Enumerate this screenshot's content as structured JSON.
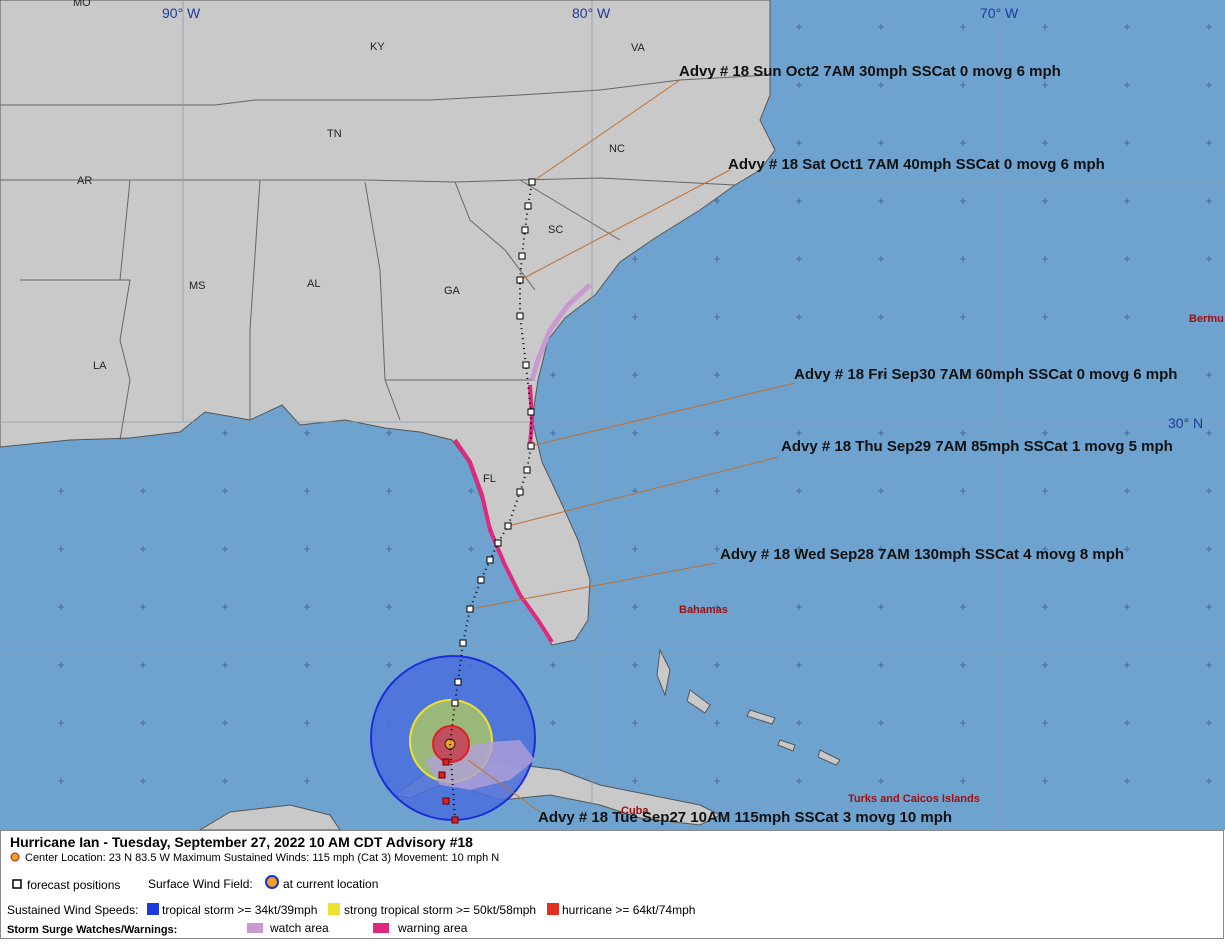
{
  "map": {
    "grid_labels": [
      "90° W",
      "80° W",
      "70° W",
      "30° N"
    ],
    "state_labels": [
      "MO",
      "KY",
      "VA",
      "TN",
      "NC",
      "AR",
      "SC",
      "MS",
      "AL",
      "GA",
      "LA",
      "FL"
    ],
    "place_labels": [
      "Bermu",
      "Bahamas",
      "Cuba",
      "Turks and Caicos Islands"
    ],
    "forecast_labels": [
      "Advy # 18 Sun Oct2 7AM  30mph SSCat 0 movg 6 mph",
      "Advy # 18 Sat Oct1 7AM  40mph SSCat 0 movg 6 mph",
      "Advy # 18 Fri Sep30 7AM  60mph SSCat 0 movg 6 mph",
      "Advy # 18 Thu Sep29 7AM  85mph SSCat 1 movg 5 mph",
      "Advy # 18 Wed Sep28 7AM  130mph SSCat 4 movg 8 mph",
      "Advy # 18 Tue Sep27 10AM  115mph SSCat 3 movg 10 mph"
    ]
  },
  "legend": {
    "title": "Hurricane Ian  -  Tuesday, September 27, 2022  10 AM CDT   Advisory #18",
    "center": "Center Location: 23 N  83.5 W   Maximum Sustained Winds: 115 mph (Cat 3) Movement: 10 mph N",
    "forecast_positions": "forecast positions",
    "wind_field": "Surface Wind Field:",
    "current_location": "at current location",
    "wind_speeds": "Sustained Wind Speeds:",
    "tropical_storm": "tropical storm >= 34kt/39mph",
    "strong_tropical_storm": "strong tropical storm >= 50kt/58mph",
    "hurricane": "hurricane >= 64kt/74mph",
    "surge": "Storm Surge Watches/Warnings:",
    "watch": "watch area",
    "warning": "warning area"
  }
}
